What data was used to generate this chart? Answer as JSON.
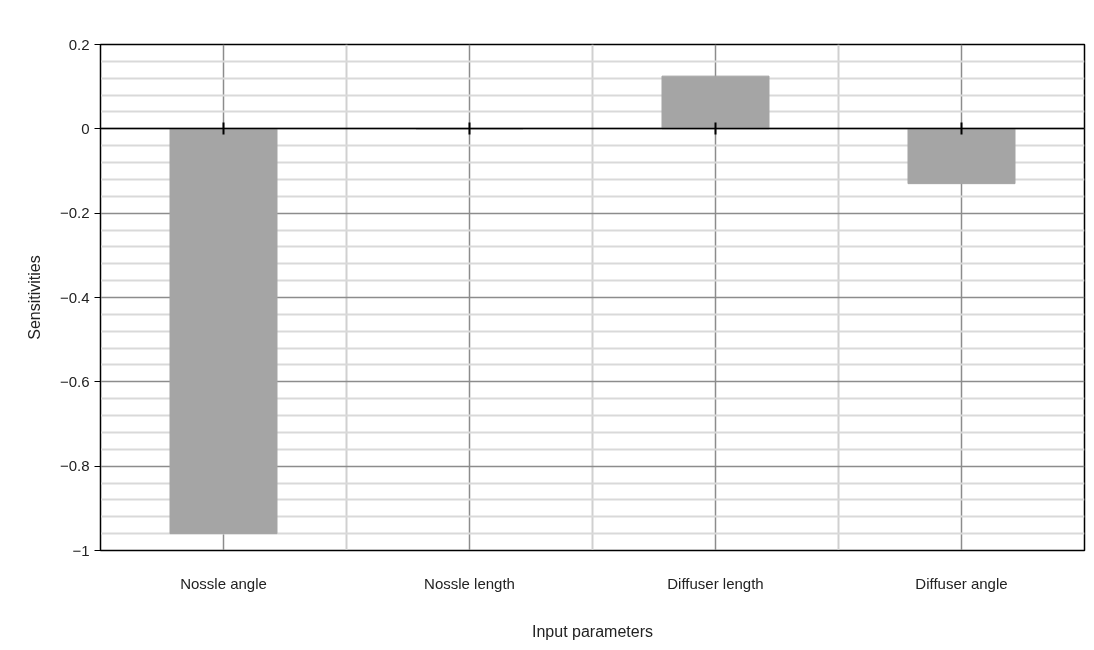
{
  "chart_data": {
    "type": "bar",
    "xlabel": "Input parameters",
    "ylabel": "Sensitivities",
    "categories": [
      "Nossle angle",
      "Nossle length",
      "Diffuser length",
      "Diffuser angle"
    ],
    "values": [
      -0.96,
      0,
      0.125,
      -0.13
    ],
    "color": "#a5a5a5",
    "ylim": [
      -1,
      0.2
    ],
    "yticks": [
      -1,
      -0.8,
      -0.6,
      -0.4,
      -0.2,
      0,
      0.2
    ],
    "grid": true
  }
}
